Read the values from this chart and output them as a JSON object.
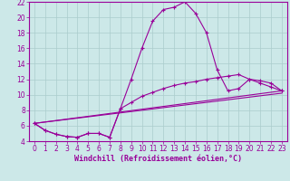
{
  "xlabel": "Windchill (Refroidissement éolien,°C)",
  "background_color": "#cce8e8",
  "grid_color": "#aacccc",
  "line_color": "#990099",
  "xlim": [
    -0.5,
    23.5
  ],
  "ylim": [
    4,
    22
  ],
  "yticks": [
    4,
    6,
    8,
    10,
    12,
    14,
    16,
    18,
    20,
    22
  ],
  "xticks": [
    0,
    1,
    2,
    3,
    4,
    5,
    6,
    7,
    8,
    9,
    10,
    11,
    12,
    13,
    14,
    15,
    16,
    17,
    18,
    19,
    20,
    21,
    22,
    23
  ],
  "line1_x": [
    0,
    1,
    2,
    3,
    4,
    5,
    6,
    7,
    8,
    9,
    10,
    11,
    12,
    13,
    14,
    15,
    16,
    17,
    18,
    19,
    20,
    21,
    22,
    23
  ],
  "line1_y": [
    6.3,
    5.4,
    4.9,
    4.6,
    4.5,
    5.0,
    5.0,
    4.5,
    8.2,
    12.0,
    16.0,
    19.5,
    21.0,
    21.3,
    22.0,
    20.5,
    18.0,
    13.2,
    10.5,
    10.8,
    12.0,
    11.8,
    11.5,
    10.5
  ],
  "line2_x": [
    0,
    1,
    2,
    3,
    4,
    5,
    6,
    7,
    8,
    9,
    10,
    11,
    12,
    13,
    14,
    15,
    16,
    17,
    18,
    19,
    20,
    21,
    22,
    23
  ],
  "line2_y": [
    6.3,
    5.4,
    4.9,
    4.6,
    4.5,
    5.0,
    5.0,
    4.5,
    8.2,
    9.0,
    9.8,
    10.3,
    10.8,
    11.2,
    11.5,
    11.7,
    12.0,
    12.2,
    12.4,
    12.6,
    12.0,
    11.5,
    11.0,
    10.5
  ],
  "line3_x": [
    0,
    23
  ],
  "line3_y": [
    6.3,
    10.5
  ],
  "line4_x": [
    0,
    23
  ],
  "line4_y": [
    6.3,
    10.2
  ],
  "marker": "+",
  "markersize": 3.0,
  "linewidth": 0.8,
  "xlabel_fontsize": 6,
  "tick_fontsize": 5.5
}
